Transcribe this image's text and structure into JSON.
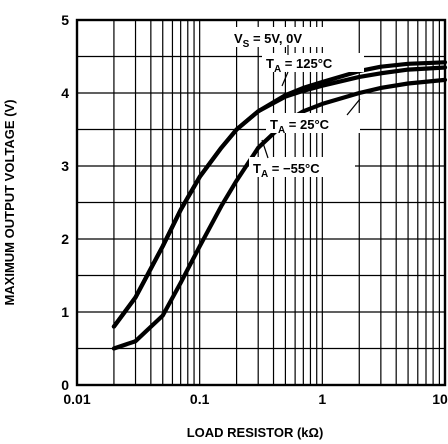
{
  "chart_data": {
    "type": "line",
    "x_scale": "log",
    "xlim": [
      0.01,
      10
    ],
    "ylim": [
      0,
      5
    ],
    "xlabel": "LOAD RESISTOR (kΩ)",
    "ylabel": "MAXIMUM OUTPUT VOLTAGE (V)",
    "x_ticks": [
      {
        "value": 0.01,
        "label": "0.01"
      },
      {
        "value": 0.1,
        "label": "0.1"
      },
      {
        "value": 1,
        "label": "1"
      },
      {
        "value": 10,
        "label": "10"
      }
    ],
    "y_ticks": [
      {
        "value": 0,
        "label": "0"
      },
      {
        "value": 1,
        "label": "1"
      },
      {
        "value": 2,
        "label": "2"
      },
      {
        "value": 3,
        "label": "3"
      },
      {
        "value": 4,
        "label": "4"
      },
      {
        "value": 5,
        "label": "5"
      }
    ],
    "grid": true,
    "series": [
      {
        "name": "T_A = 125°C",
        "x": [
          0.02,
          0.03,
          0.05,
          0.07,
          0.1,
          0.15,
          0.2,
          0.3,
          0.5,
          0.7,
          1,
          2,
          3,
          5,
          10
        ],
        "y": [
          0.8,
          1.2,
          1.9,
          2.4,
          2.85,
          3.25,
          3.5,
          3.75,
          3.95,
          4.03,
          4.1,
          4.22,
          4.27,
          4.32,
          4.35
        ]
      },
      {
        "name": "T_A = 25°C",
        "x": [
          0.02,
          0.03,
          0.05,
          0.07,
          0.1,
          0.15,
          0.2,
          0.3,
          0.5,
          0.7,
          1,
          2,
          3,
          5,
          10
        ],
        "y": [
          0.8,
          1.2,
          1.9,
          2.4,
          2.85,
          3.25,
          3.5,
          3.75,
          3.97,
          4.07,
          4.15,
          4.3,
          4.36,
          4.4,
          4.42
        ]
      },
      {
        "name": "T_A = −55°C",
        "x": [
          0.02,
          0.03,
          0.05,
          0.07,
          0.1,
          0.15,
          0.2,
          0.3,
          0.5,
          0.7,
          1,
          2,
          3,
          5,
          10
        ],
        "y": [
          0.5,
          0.6,
          0.95,
          1.4,
          1.9,
          2.45,
          2.8,
          3.25,
          3.6,
          3.75,
          3.85,
          4.0,
          4.07,
          4.13,
          4.18
        ]
      }
    ],
    "annotations": [
      {
        "main": "V",
        "sub": "S",
        "rest": " = 5V, 0V"
      },
      {
        "main": "T",
        "sub": "A",
        "rest": " = 125°C"
      },
      {
        "main": "T",
        "sub": "A",
        "rest": " = 25°C"
      },
      {
        "main": "T",
        "sub": "A",
        "rest": " = −55°C"
      }
    ]
  }
}
